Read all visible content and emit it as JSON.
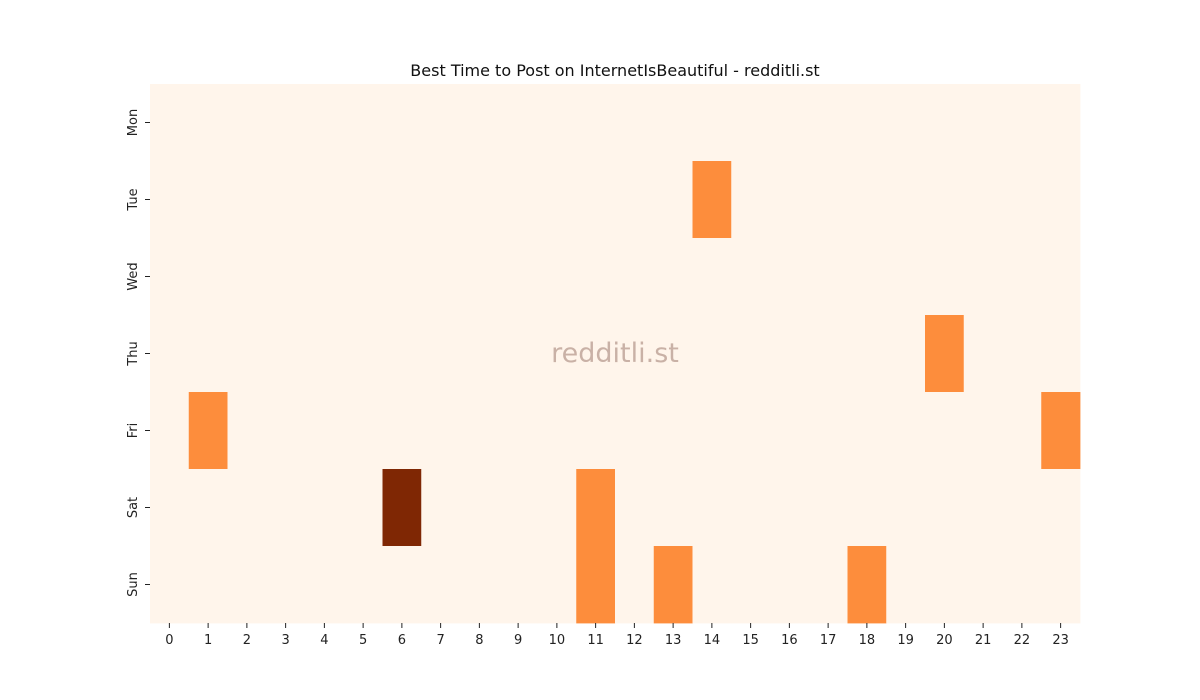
{
  "chart_data": {
    "type": "heatmap",
    "title": "Best Time to Post on InternetIsBeautiful - redditli.st",
    "watermark": "redditli.st",
    "xlabel": "",
    "ylabel": "",
    "x_categories": [
      "0",
      "1",
      "2",
      "3",
      "4",
      "5",
      "6",
      "7",
      "8",
      "9",
      "10",
      "11",
      "12",
      "13",
      "14",
      "15",
      "16",
      "17",
      "18",
      "19",
      "20",
      "21",
      "22",
      "23"
    ],
    "y_categories": [
      "Mon",
      "Tue",
      "Wed",
      "Thu",
      "Fri",
      "Sat",
      "Sun"
    ],
    "colormap": "Oranges",
    "colors": {
      "low": "#fff5eb",
      "mid": "#fd8d3c",
      "high": "#7f2704"
    },
    "values": [
      [
        0,
        0,
        0,
        0,
        0,
        0,
        0,
        0,
        0,
        0,
        0,
        0,
        0,
        0,
        0,
        0,
        0,
        0,
        0,
        0,
        0,
        0,
        0,
        0
      ],
      [
        0,
        0,
        0,
        0,
        0,
        0,
        0,
        0,
        0,
        0,
        0,
        0,
        0,
        0,
        1,
        0,
        0,
        0,
        0,
        0,
        0,
        0,
        0,
        0
      ],
      [
        0,
        0,
        0,
        0,
        0,
        0,
        0,
        0,
        0,
        0,
        0,
        0,
        0,
        0,
        0,
        0,
        0,
        0,
        0,
        0,
        0,
        0,
        0,
        0
      ],
      [
        0,
        0,
        0,
        0,
        0,
        0,
        0,
        0,
        0,
        0,
        0,
        0,
        0,
        0,
        0,
        0,
        0,
        0,
        0,
        0,
        1,
        0,
        0,
        0
      ],
      [
        0,
        1,
        0,
        0,
        0,
        0,
        0,
        0,
        0,
        0,
        0,
        0,
        0,
        0,
        0,
        0,
        0,
        0,
        0,
        0,
        0,
        0,
        0,
        1
      ],
      [
        0,
        0,
        0,
        0,
        0,
        0,
        2,
        0,
        0,
        0,
        0,
        1,
        0,
        0,
        0,
        0,
        0,
        0,
        0,
        0,
        0,
        0,
        0,
        0
      ],
      [
        0,
        0,
        0,
        0,
        0,
        0,
        0,
        0,
        0,
        0,
        0,
        1,
        0,
        1,
        0,
        0,
        0,
        0,
        1,
        0,
        0,
        0,
        0,
        0
      ]
    ],
    "vmin": 0,
    "vmax": 2
  }
}
